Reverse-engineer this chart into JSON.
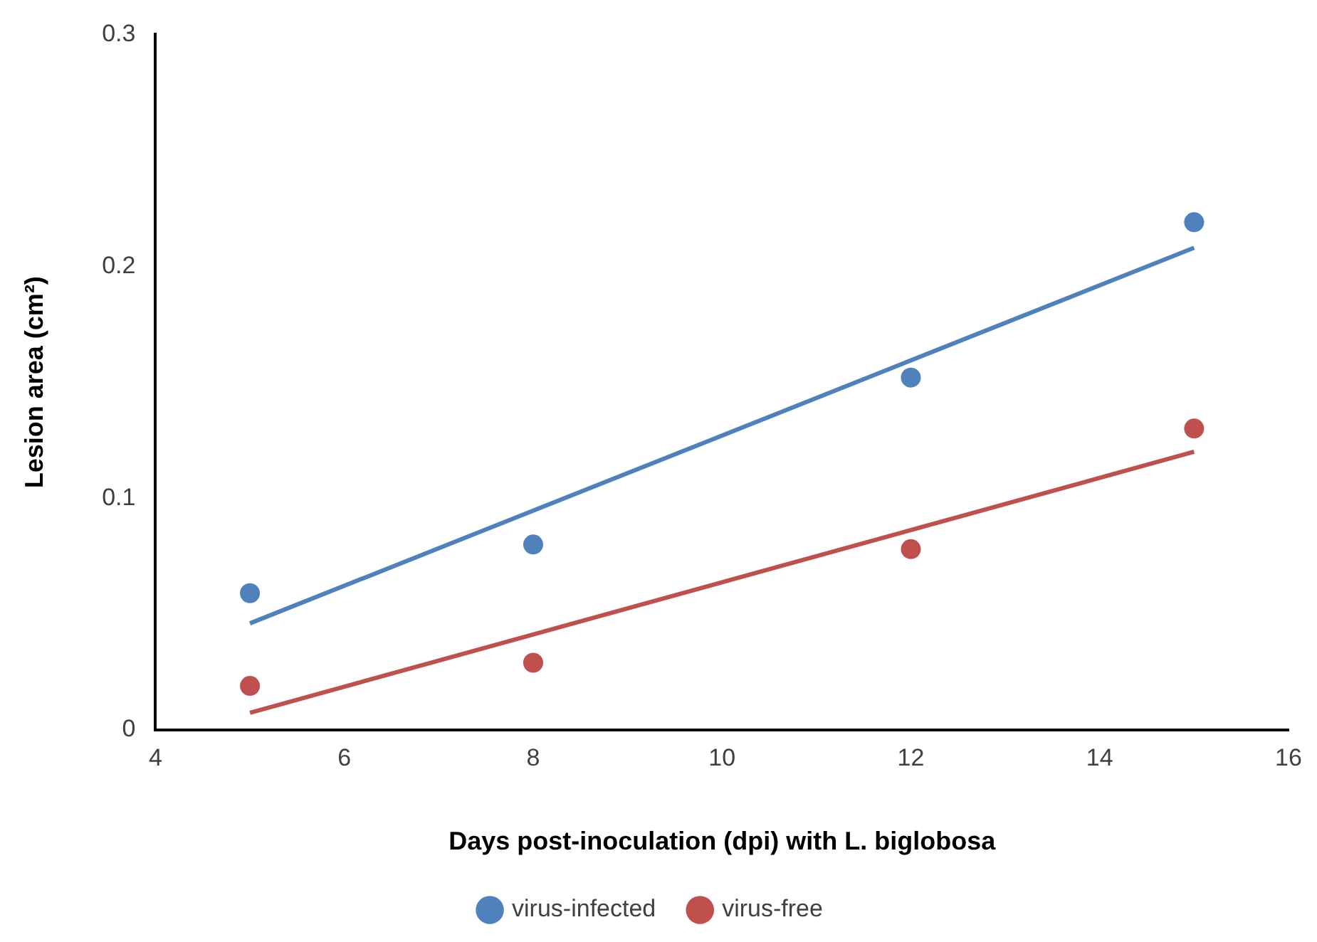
{
  "chart_data": {
    "type": "scatter",
    "xlabel": "Days post-inoculation (dpi) with L. biglobosa",
    "ylabel": "Lesion area (cm²)",
    "xlim": [
      4,
      16
    ],
    "xticks": [
      4,
      6,
      8,
      10,
      12,
      14,
      16
    ],
    "ylim": [
      0,
      0.3
    ],
    "yticks": [
      0,
      0.1,
      0.2,
      0.3
    ],
    "grid": false,
    "legend": "bottom",
    "marker": "circle",
    "series": [
      {
        "name": "virus-infected",
        "color": "#4f81bd",
        "x": [
          5,
          8,
          12,
          15
        ],
        "values": [
          0.059,
          0.08,
          0.152,
          0.219
        ]
      },
      {
        "name": "virus-free",
        "color": "#c0504d",
        "x": [
          5,
          8,
          12,
          15
        ],
        "values": [
          0.019,
          0.029,
          0.078,
          0.13
        ]
      },
      {
        "type": "line",
        "marker": "none",
        "color": "#4f81bd",
        "x": [
          5,
          15
        ],
        "values": [
          0.046,
          0.208
        ]
      },
      {
        "type": "line",
        "marker": "none",
        "color": "#c0504d",
        "x": [
          5,
          15
        ],
        "values": [
          0.0074,
          0.12
        ]
      }
    ]
  }
}
